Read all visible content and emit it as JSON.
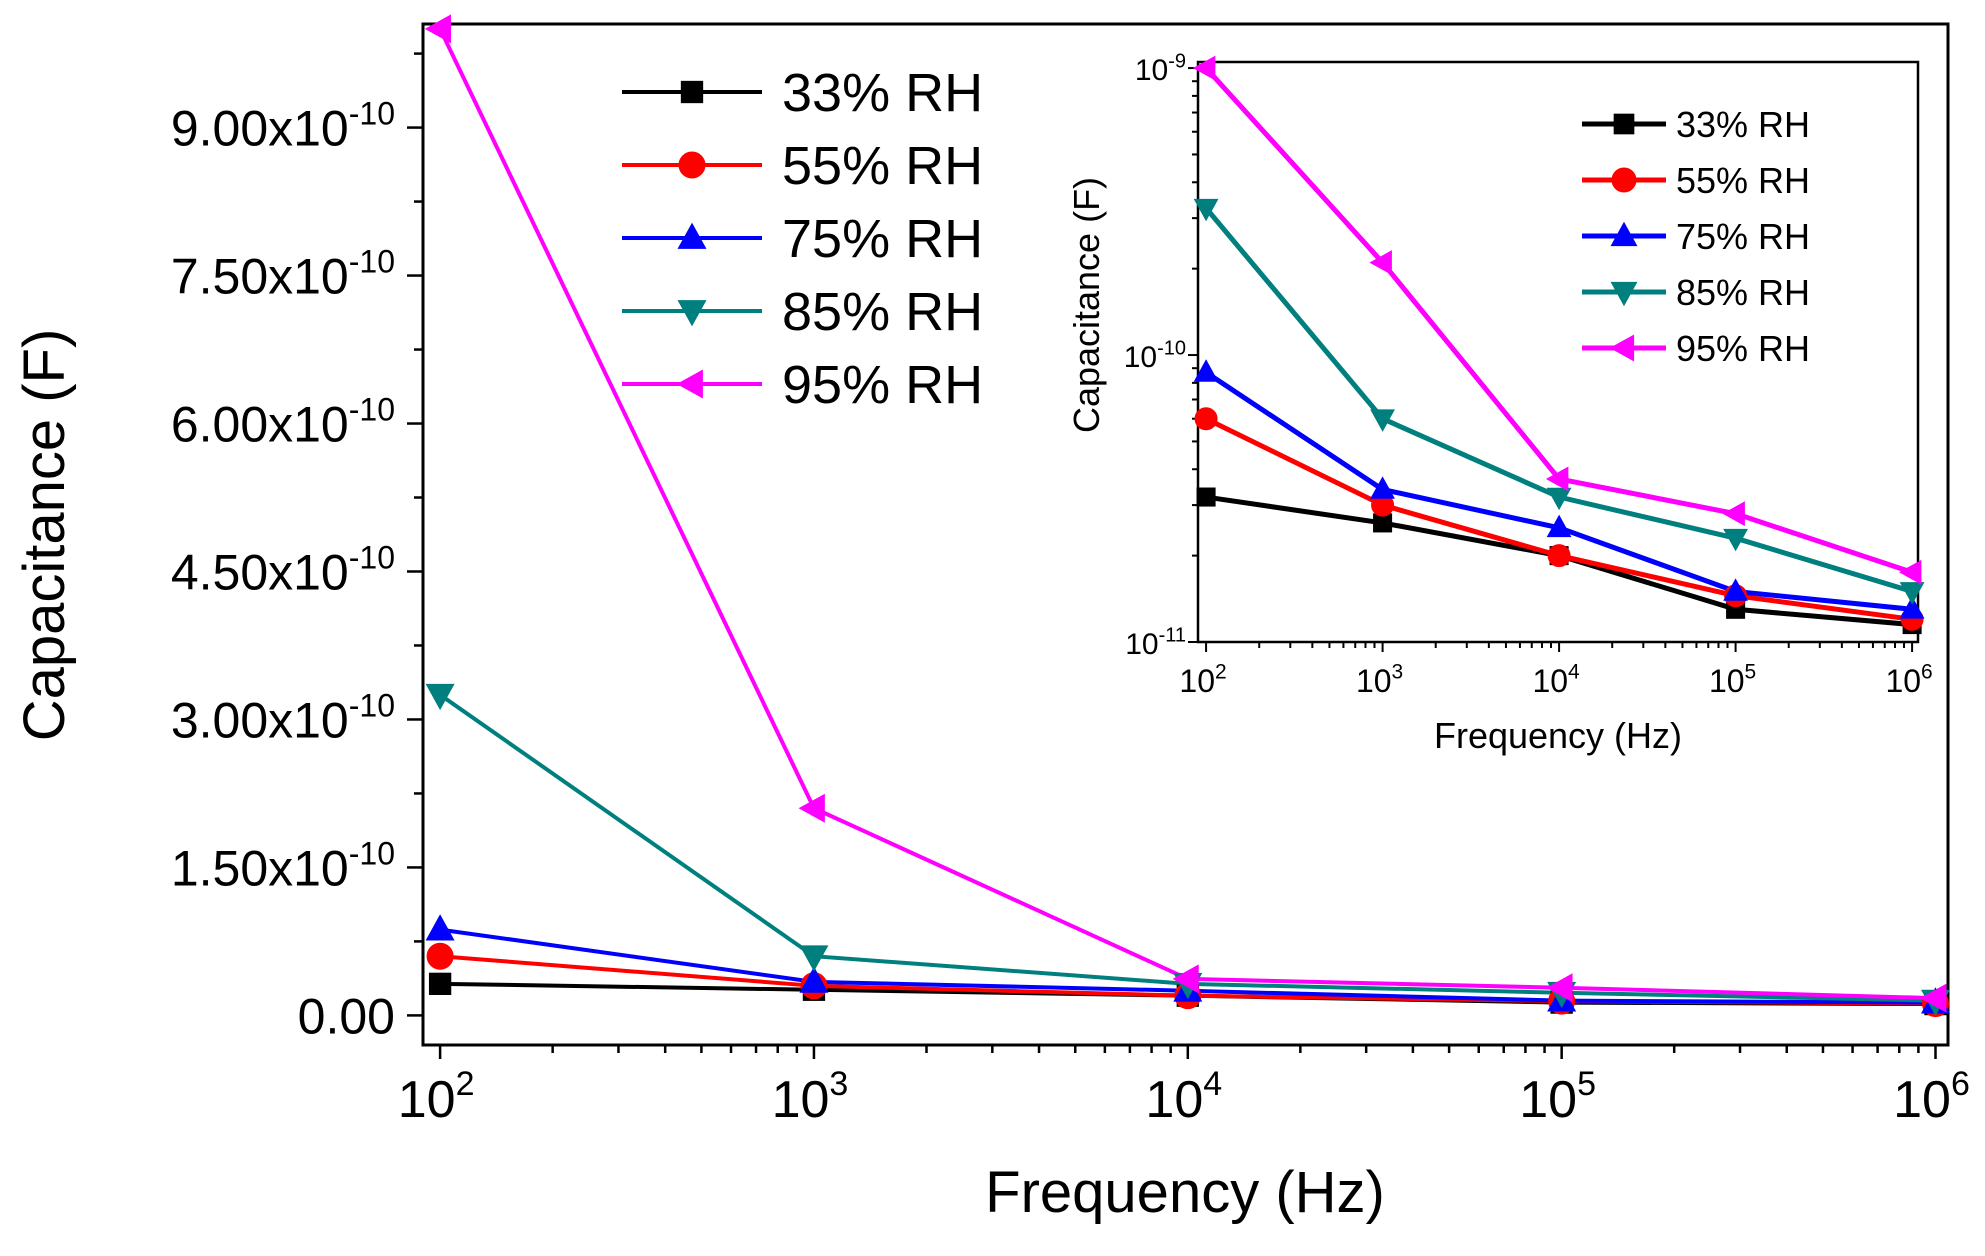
{
  "chart_data": [
    {
      "id": "main",
      "type": "line",
      "xlabel": "Frequency (Hz)",
      "ylabel": "Capacitance (F)",
      "xscale": "log",
      "yscale": "linear",
      "xlim": [
        90,
        1080000.0
      ],
      "ylim": [
        -3e-11,
        1.005e-09
      ],
      "x": [
        100,
        1000,
        10000,
        100000,
        1000000
      ],
      "x_ticks": [
        {
          "base": "10",
          "exp": "2"
        },
        {
          "base": "10",
          "exp": "3"
        },
        {
          "base": "10",
          "exp": "4"
        },
        {
          "base": "10",
          "exp": "5"
        },
        {
          "base": "10",
          "exp": "6"
        }
      ],
      "y_ticks": [
        {
          "value": 0,
          "label": "0.00"
        },
        {
          "value": 1.5e-10,
          "label": "1.50x10",
          "exp": "-10"
        },
        {
          "value": 3e-10,
          "label": "3.00x10",
          "exp": "-10"
        },
        {
          "value": 4.5e-10,
          "label": "4.50x10",
          "exp": "-10"
        },
        {
          "value": 6e-10,
          "label": "6.00x10",
          "exp": "-10"
        },
        {
          "value": 7.5e-10,
          "label": "7.50x10",
          "exp": "-10"
        },
        {
          "value": 9e-10,
          "label": "9.00x10",
          "exp": "-10"
        }
      ],
      "legend_position": "top-left",
      "series": [
        {
          "name": "33% RH",
          "color": "#000000",
          "marker": "square",
          "values": [
            3.2e-11,
            2.6e-11,
            2e-11,
            1.3e-11,
            1.15e-11
          ]
        },
        {
          "name": "55% RH",
          "color": "#ff0000",
          "marker": "circle",
          "values": [
            6e-11,
            3e-11,
            2e-11,
            1.45e-11,
            1.2e-11
          ]
        },
        {
          "name": "75% RH",
          "color": "#0000ff",
          "marker": "triangle-up",
          "values": [
            8.7e-11,
            3.4e-11,
            2.5e-11,
            1.5e-11,
            1.3e-11
          ]
        },
        {
          "name": "85% RH",
          "color": "#007f7f",
          "marker": "triangle-down",
          "values": [
            3.25e-10,
            6e-11,
            3.2e-11,
            2.3e-11,
            1.5e-11
          ]
        },
        {
          "name": "95% RH",
          "color": "#ff00ff",
          "marker": "triangle-left",
          "values": [
            1e-09,
            2.1e-10,
            3.7e-11,
            2.8e-11,
            1.75e-11
          ]
        }
      ]
    },
    {
      "id": "inset",
      "type": "line",
      "xlabel": "Frequency (Hz)",
      "ylabel": "Capacitance (F)",
      "xscale": "log",
      "yscale": "log",
      "xlim": [
        90,
        1080000.0
      ],
      "ylim": [
        1e-11,
        1.05e-09
      ],
      "x_ticks": [
        {
          "base": "10",
          "exp": "2"
        },
        {
          "base": "10",
          "exp": "3"
        },
        {
          "base": "10",
          "exp": "4"
        },
        {
          "base": "10",
          "exp": "5"
        },
        {
          "base": "10",
          "exp": "6"
        }
      ],
      "y_ticks": [
        {
          "value": 1e-11,
          "base": "10",
          "exp": "-11"
        },
        {
          "value": 1e-10,
          "base": "10",
          "exp": "-10"
        },
        {
          "value": 1e-09,
          "base": "10",
          "exp": "-9"
        }
      ],
      "legend_position": "top-right",
      "same_series_as": "main"
    }
  ]
}
